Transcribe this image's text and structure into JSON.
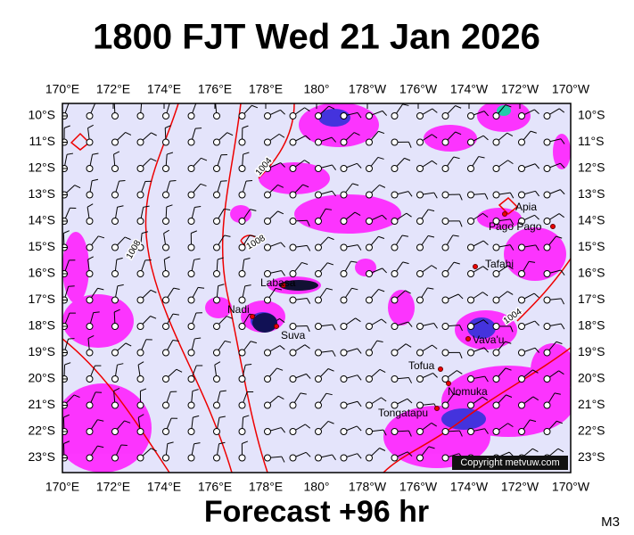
{
  "header": {
    "title": "1800 FJT Wed 21 Jan 2026"
  },
  "footer": {
    "forecast": "Forecast +96 hr",
    "model": "M3"
  },
  "axes": {
    "lon_labels": [
      "170°E",
      "172°E",
      "174°E",
      "176°E",
      "178°E",
      "180°",
      "178°W",
      "176°W",
      "174°W",
      "172°W",
      "170°W"
    ],
    "lat_labels": [
      "10°S",
      "11°S",
      "12°S",
      "13°S",
      "14°S",
      "15°S",
      "16°S",
      "17°S",
      "18°S",
      "19°S",
      "20°S",
      "21°S",
      "22°S",
      "23°S"
    ]
  },
  "places": [
    "Apia",
    "Pago Pago",
    "Tafahi",
    "Labasa",
    "Nadi",
    "Suva",
    "Vava'u",
    "Tofua",
    "Nomuka",
    "Tongatapu"
  ],
  "isobar_labels": [
    "1004",
    "1008",
    "1008",
    "1004"
  ],
  "copyright": "Copyright metvuw.com"
}
